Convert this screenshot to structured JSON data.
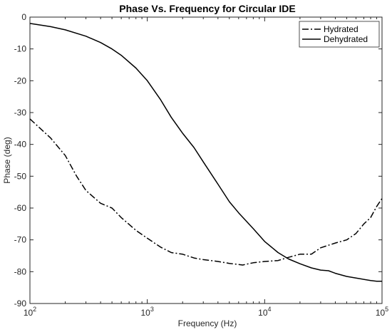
{
  "chart_data": {
    "type": "line",
    "title": "Phase Vs. Frequency for Circular IDE",
    "xlabel": "Frequency (Hz)",
    "ylabel": "Phase (deg)",
    "x_scale": "log",
    "xlim": [
      100,
      100000
    ],
    "ylim": [
      -90,
      0
    ],
    "x_ticks": [
      {
        "value": 100,
        "base": "10",
        "exp": "2"
      },
      {
        "value": 1000,
        "base": "10",
        "exp": "3"
      },
      {
        "value": 10000,
        "base": "10",
        "exp": "4"
      },
      {
        "value": 100000,
        "base": "10",
        "exp": "5"
      }
    ],
    "y_ticks": [
      0,
      -10,
      -20,
      -30,
      -40,
      -50,
      -60,
      -70,
      -80,
      -90
    ],
    "y_tick_labels": [
      "0",
      "-10",
      "-20",
      "-30",
      "-40",
      "-50",
      "-60",
      "-70",
      "-80",
      "-90"
    ],
    "grid": false,
    "legend_position": "top-right",
    "series": [
      {
        "name": "Hydrated",
        "style": "dashdot",
        "color": "#000000",
        "x": [
          100,
          150,
          200,
          250,
          300,
          400,
          500,
          600,
          800,
          1000,
          1300,
          1600,
          2000,
          2500,
          3000,
          4000,
          5000,
          6500,
          8000,
          10000,
          13000,
          16000,
          20000,
          25000,
          30000,
          40000,
          50000,
          60000,
          70000,
          80000,
          90000,
          100000
        ],
        "y": [
          -32,
          -38,
          -43.5,
          -50,
          -54.5,
          -58.5,
          -60,
          -63,
          -67,
          -69.5,
          -72.3,
          -74,
          -74.5,
          -75.7,
          -76.2,
          -76.8,
          -77.4,
          -77.9,
          -77.2,
          -76.8,
          -76.5,
          -75.5,
          -74.5,
          -74.5,
          -72.5,
          -71,
          -70,
          -68,
          -65,
          -63,
          -59.5,
          -57
        ]
      },
      {
        "name": "Dehydrated",
        "style": "solid",
        "color": "#000000",
        "x": [
          100,
          150,
          200,
          300,
          400,
          500,
          600,
          800,
          1000,
          1300,
          1600,
          2000,
          2500,
          3000,
          4000,
          5000,
          6000,
          8000,
          10000,
          13000,
          16000,
          20000,
          25000,
          30000,
          35000,
          40000,
          50000,
          60000,
          80000,
          90000,
          100000
        ],
        "y": [
          -2,
          -3,
          -4,
          -6,
          -8,
          -10,
          -12,
          -16,
          -20,
          -26,
          -31.5,
          -36.5,
          -41,
          -45.5,
          -52.5,
          -58,
          -61.5,
          -66.5,
          -70.5,
          -74,
          -76,
          -77.5,
          -78.8,
          -79.5,
          -79.7,
          -80.5,
          -81.5,
          -82,
          -82.8,
          -83,
          -83
        ]
      }
    ]
  }
}
